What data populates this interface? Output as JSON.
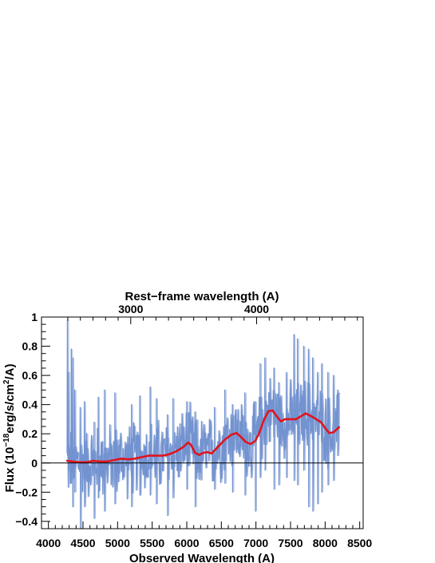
{
  "chart_data": {
    "type": "line",
    "top_axis_title": "Rest−frame wavelength (A)",
    "xlabel": "Observed Wavelength (A)",
    "ylabel_parts": {
      "pre": "Flux (10",
      "exp1": "−18",
      "mid": "erg/s/cm",
      "exp2": "2",
      "post": "/A)"
    },
    "xlim": [
      3900,
      8550
    ],
    "ylim": [
      -0.45,
      1.0
    ],
    "x_ticks": [
      "4000",
      "4500",
      "5000",
      "5500",
      "6000",
      "6500",
      "7000",
      "7500",
      "8000",
      "8500"
    ],
    "y_ticks": [
      "−0.4",
      "−0.2",
      "0",
      "0.2",
      "0.4",
      "0.6",
      "0.8",
      "1"
    ],
    "top_ticks": [
      {
        "label": "3000",
        "obs": 5190
      },
      {
        "label": "4000",
        "obs": 7010
      }
    ],
    "colors": {
      "spectrum": "#7393d0",
      "model": "#e0141e",
      "zero_line": "#000000"
    },
    "series": [
      {
        "kind": "model",
        "x": [
          4270,
          4350,
          4450,
          4550,
          4650,
          4750,
          4850,
          4950,
          5050,
          5150,
          5250,
          5350,
          5450,
          5550,
          5650,
          5750,
          5850,
          5950,
          6020,
          6060,
          6120,
          6180,
          6240,
          6300,
          6360,
          6450,
          6550,
          6650,
          6720,
          6780,
          6850,
          6920,
          6990,
          7050,
          7120,
          7180,
          7240,
          7300,
          7360,
          7420,
          7500,
          7580,
          7650,
          7720,
          7800,
          7870,
          7940,
          8000,
          8060,
          8120,
          8200
        ],
        "y": [
          0.015,
          0.01,
          0.005,
          0.005,
          0.015,
          0.01,
          0.01,
          0.02,
          0.03,
          0.025,
          0.03,
          0.04,
          0.05,
          0.05,
          0.05,
          0.06,
          0.08,
          0.11,
          0.14,
          0.125,
          0.07,
          0.055,
          0.07,
          0.075,
          0.065,
          0.11,
          0.16,
          0.195,
          0.205,
          0.18,
          0.145,
          0.13,
          0.15,
          0.21,
          0.3,
          0.355,
          0.36,
          0.32,
          0.285,
          0.3,
          0.3,
          0.3,
          0.32,
          0.34,
          0.32,
          0.3,
          0.28,
          0.24,
          0.205,
          0.21,
          0.245
        ]
      },
      {
        "kind": "spectrum",
        "x_start": 4270,
        "x_end": 8200,
        "spikes": [
          {
            "x": 4275,
            "hi": 0.98,
            "lo": 0.05
          },
          {
            "x": 4290,
            "hi": 0.62,
            "lo": -0.05
          },
          {
            "x": 4330,
            "hi": 0.78,
            "lo": -0.12
          },
          {
            "x": 4350,
            "hi": 0.72,
            "lo": -0.3
          },
          {
            "x": 4380,
            "hi": 0.5,
            "lo": -0.2
          },
          {
            "x": 4460,
            "hi": 0.38,
            "lo": -0.45
          },
          {
            "x": 4520,
            "hi": 0.42,
            "lo": -0.3
          },
          {
            "x": 4660,
            "hi": 0.28,
            "lo": -0.38
          },
          {
            "x": 4720,
            "hi": 0.45,
            "lo": -0.24
          },
          {
            "x": 4810,
            "hi": 0.5,
            "lo": -0.33
          },
          {
            "x": 4960,
            "hi": 0.48,
            "lo": -0.28
          },
          {
            "x": 5200,
            "hi": 0.4,
            "lo": -0.3
          },
          {
            "x": 5320,
            "hi": 0.46,
            "lo": -0.22
          },
          {
            "x": 5470,
            "hi": 0.52,
            "lo": -0.22
          },
          {
            "x": 5560,
            "hi": 0.44,
            "lo": -0.28
          },
          {
            "x": 5720,
            "hi": 0.33,
            "lo": -0.36
          },
          {
            "x": 5800,
            "hi": 0.44,
            "lo": -0.24
          },
          {
            "x": 6000,
            "hi": 0.42,
            "lo": -0.18
          },
          {
            "x": 6120,
            "hi": 0.35,
            "lo": -0.3
          },
          {
            "x": 6400,
            "hi": 0.38,
            "lo": -0.18
          },
          {
            "x": 6550,
            "hi": 0.5,
            "lo": -0.14
          },
          {
            "x": 6660,
            "hi": 0.4,
            "lo": -0.2
          },
          {
            "x": 6840,
            "hi": 0.48,
            "lo": -0.22
          },
          {
            "x": 6990,
            "hi": 0.42,
            "lo": -0.33
          },
          {
            "x": 7060,
            "hi": 0.68,
            "lo": -0.1
          },
          {
            "x": 7130,
            "hi": 0.72,
            "lo": -0.05
          },
          {
            "x": 7260,
            "hi": 0.65,
            "lo": -0.18
          },
          {
            "x": 7330,
            "hi": 0.55,
            "lo": -0.15
          },
          {
            "x": 7440,
            "hi": 0.62,
            "lo": -0.1
          },
          {
            "x": 7550,
            "hi": 0.88,
            "lo": -0.12
          },
          {
            "x": 7600,
            "hi": 0.85,
            "lo": -0.15
          },
          {
            "x": 7690,
            "hi": 0.8,
            "lo": -0.05
          },
          {
            "x": 7760,
            "hi": 0.78,
            "lo": -0.3
          },
          {
            "x": 7820,
            "hi": 0.72,
            "lo": -0.33
          },
          {
            "x": 7890,
            "hi": 0.62,
            "lo": -0.28
          },
          {
            "x": 7950,
            "hi": 0.68,
            "lo": -0.2
          },
          {
            "x": 8040,
            "hi": 0.62,
            "lo": -0.15
          },
          {
            "x": 8120,
            "hi": 0.6,
            "lo": -0.12
          },
          {
            "x": 8180,
            "hi": 0.5,
            "lo": 0.05
          }
        ],
        "noise_amplitude": 0.2
      }
    ]
  }
}
